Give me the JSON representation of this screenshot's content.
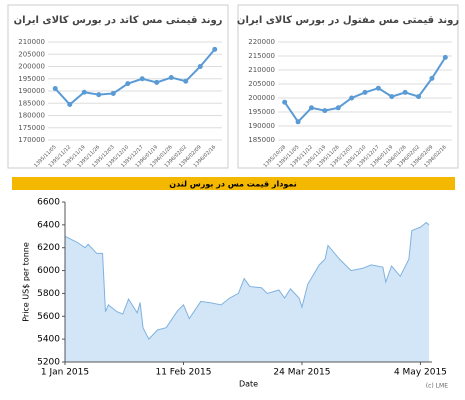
{
  "banner": {
    "title": "نمودار قیمت مس در بورس لندن"
  },
  "chart_data": [
    {
      "type": "line",
      "title": "روند قیمتی مس کاتد در بورس کالای ایران",
      "color": "#5b9bd5",
      "grid": true,
      "categories": [
        "1395/11/05",
        "1395/11/12",
        "1395/11/19",
        "1395/11/26",
        "1395/12/03",
        "1395/12/10",
        "1395/12/17",
        "1396/01/19",
        "1396/01/26",
        "1396/02/02",
        "1396/02/09",
        "1396/02/16"
      ],
      "values": [
        191000,
        184500,
        189500,
        188500,
        189000,
        193000,
        195000,
        193500,
        195500,
        194000,
        200000,
        207000
      ],
      "ylim": [
        170000,
        210000
      ],
      "yticks": [
        170000,
        175000,
        180000,
        185000,
        190000,
        195000,
        200000,
        205000,
        210000
      ]
    },
    {
      "type": "line",
      "title": "روند قیمتی مس مفتول در بورس کالای ایران",
      "color": "#5b9bd5",
      "grid": true,
      "categories": [
        "1395/10/28",
        "1395/11/05",
        "1395/11/12",
        "1395/11/19",
        "1395/11/26",
        "1395/12/03",
        "1395/12/10",
        "1395/12/17",
        "1396/01/19",
        "1396/01/26",
        "1396/02/02",
        "1396/02/09",
        "1396/02/16"
      ],
      "values": [
        198500,
        191500,
        196500,
        195500,
        196500,
        200000,
        202000,
        203500,
        200500,
        202000,
        200500,
        207000,
        214500
      ],
      "ylim": [
        185000,
        220000
      ],
      "yticks": [
        185000,
        190000,
        195000,
        200000,
        205000,
        210000,
        215000,
        220000
      ]
    },
    {
      "type": "area",
      "color": "#7fb2e0",
      "fill": "#d3e6f7",
      "ylabel": "Price US$ per tonne",
      "xlabel": "Date",
      "note": "(c) LME",
      "x": [
        "2015-01-01",
        "2015-01-05",
        "2015-01-08",
        "2015-01-09",
        "2015-01-12",
        "2015-01-14",
        "2015-01-15",
        "2015-01-16",
        "2015-01-19",
        "2015-01-21",
        "2015-01-23",
        "2015-01-26",
        "2015-01-27",
        "2015-01-28",
        "2015-01-29",
        "2015-01-30",
        "2015-02-02",
        "2015-02-05",
        "2015-02-09",
        "2015-02-11",
        "2015-02-13",
        "2015-02-17",
        "2015-02-20",
        "2015-02-24",
        "2015-02-27",
        "2015-03-02",
        "2015-03-04",
        "2015-03-06",
        "2015-03-10",
        "2015-03-12",
        "2015-03-16",
        "2015-03-18",
        "2015-03-20",
        "2015-03-23",
        "2015-03-24",
        "2015-03-26",
        "2015-03-30",
        "2015-04-01",
        "2015-04-02",
        "2015-04-06",
        "2015-04-08",
        "2015-04-10",
        "2015-04-14",
        "2015-04-17",
        "2015-04-21",
        "2015-04-22",
        "2015-04-24",
        "2015-04-27",
        "2015-04-29",
        "2015-04-30",
        "2015-05-01",
        "2015-05-04",
        "2015-05-05",
        "2015-05-06",
        "2015-05-07"
      ],
      "values": [
        6300,
        6250,
        6200,
        6230,
        6150,
        6150,
        5640,
        5700,
        5640,
        5620,
        5750,
        5630,
        5720,
        5500,
        5450,
        5400,
        5480,
        5500,
        5650,
        5700,
        5580,
        5730,
        5720,
        5700,
        5760,
        5800,
        5930,
        5860,
        5850,
        5800,
        5830,
        5760,
        5840,
        5760,
        5680,
        5880,
        6050,
        6100,
        6220,
        6100,
        6050,
        6000,
        6020,
        6050,
        6030,
        5900,
        6040,
        5950,
        6050,
        6100,
        6350,
        6380,
        6400,
        6420,
        6400
      ],
      "xlim": [
        "2015-01-01",
        "2015-05-08"
      ],
      "xticks": [
        {
          "value": "2015-01-01",
          "label": "1 Jan 2015"
        },
        {
          "value": "2015-02-11",
          "label": "11 Feb 2015"
        },
        {
          "value": "2015-03-24",
          "label": "24 Mar 2015"
        },
        {
          "value": "2015-05-04",
          "label": "4 May 2015"
        }
      ],
      "ylim": [
        5200,
        6600
      ],
      "yticks": [
        5200,
        5400,
        5600,
        5800,
        6000,
        6200,
        6400,
        6600
      ]
    }
  ]
}
